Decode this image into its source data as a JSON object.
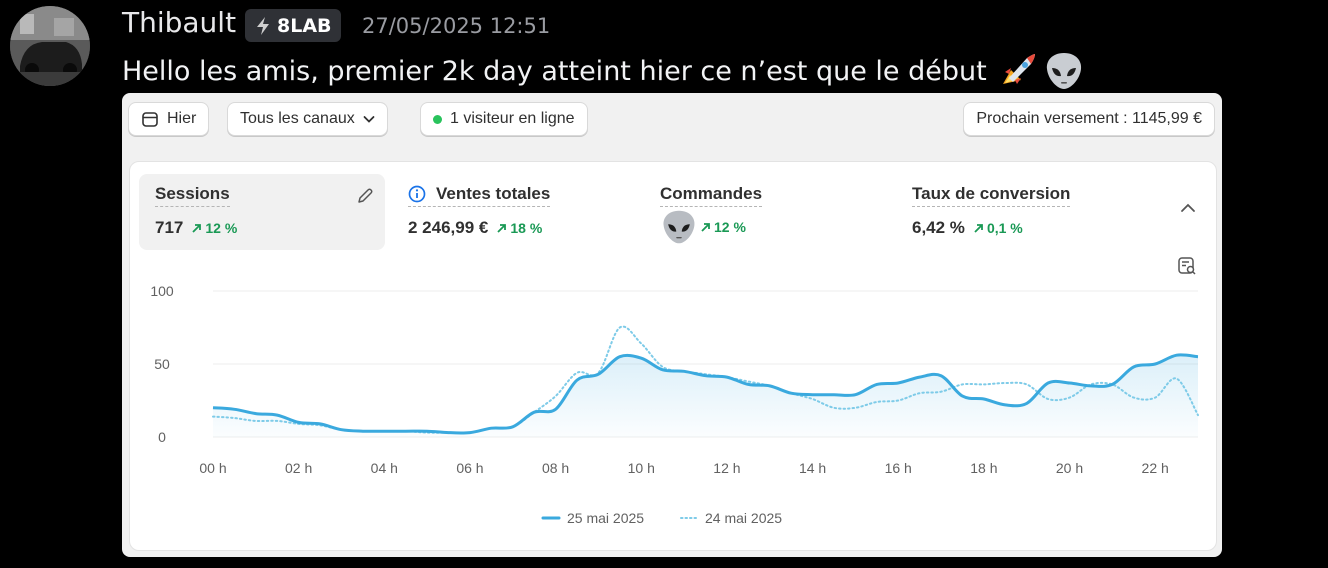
{
  "message": {
    "username": "Thibault",
    "badge": "8LAB",
    "timestamp": "27/05/2025 12:51",
    "text": "Hello les amis, premier 2k day atteint hier ce n’est que le début",
    "emojis": [
      "rocket-emoji",
      "alien-emoji"
    ]
  },
  "toolbar": {
    "date_label": "Hier",
    "channels_label": "Tous les canaux",
    "visitors_label": "1 visiteur en ligne",
    "payout_label": "Prochain versement : 1145,99 €"
  },
  "metrics": [
    {
      "title": "Sessions",
      "value": "717",
      "change": "12 %"
    },
    {
      "title": "Ventes totales",
      "value": "2 246,99 €",
      "change": "18 %"
    },
    {
      "title": "Commandes",
      "value": "",
      "change": "12 %",
      "value_icon": "alien-emoji"
    },
    {
      "title": "Taux de conversion",
      "value": "6,42 %",
      "change": "0,1 %"
    }
  ],
  "colors": {
    "accent": "#3aa9de",
    "positive": "#1a9955",
    "compare": "#7ecbe8"
  },
  "chart_data": {
    "type": "line",
    "y_ticks": [
      "0",
      "50",
      "100"
    ],
    "ylim": [
      0,
      100
    ],
    "x_tick_labels": [
      "00 h",
      "02 h",
      "04 h",
      "06 h",
      "08 h",
      "10 h",
      "12 h",
      "14 h",
      "16 h",
      "18 h",
      "20 h",
      "22 h"
    ],
    "x": [
      0,
      0.5,
      1,
      1.5,
      2,
      2.5,
      3,
      3.5,
      4,
      4.5,
      5,
      5.5,
      6,
      6.5,
      7,
      7.5,
      8,
      8.5,
      9,
      9.5,
      10,
      10.5,
      11,
      11.5,
      12,
      12.5,
      13,
      13.5,
      14,
      14.5,
      15,
      15.5,
      16,
      16.5,
      17,
      17.5,
      18,
      18.5,
      19,
      19.5,
      20,
      20.5,
      21,
      21.5,
      22,
      22.5,
      23
    ],
    "series": [
      {
        "name": "25 mai 2025",
        "style": "solid",
        "values": [
          20,
          19,
          16,
          15,
          10,
          9,
          5,
          4,
          4,
          4,
          4,
          3,
          3,
          6,
          7,
          17,
          19,
          39,
          43,
          55,
          54,
          46,
          45,
          42,
          41,
          36,
          35,
          30,
          29,
          29,
          29,
          36,
          37,
          41,
          42,
          28,
          26,
          22,
          23,
          37,
          37,
          35,
          36,
          48,
          50,
          56,
          55
        ]
      },
      {
        "name": "24 mai 2025",
        "style": "dotted",
        "values": [
          14,
          13,
          11,
          11,
          9,
          8,
          5,
          4,
          4,
          4,
          3,
          3,
          3,
          6,
          7,
          17,
          28,
          44,
          44,
          75,
          64,
          48,
          45,
          43,
          41,
          38,
          35,
          30,
          26,
          20,
          20,
          24,
          25,
          30,
          31,
          36,
          36,
          37,
          36,
          26,
          27,
          36,
          36,
          27,
          27,
          40,
          15
        ]
      }
    ]
  }
}
